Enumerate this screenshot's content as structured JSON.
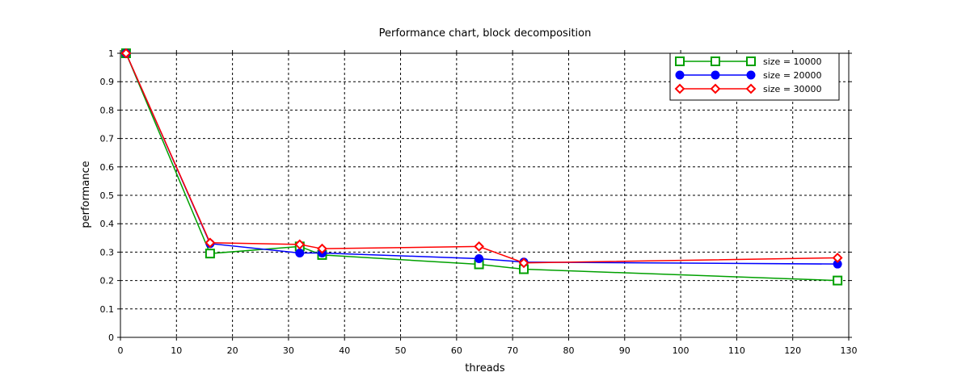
{
  "chart_data": {
    "type": "line",
    "title": "Performance chart, block decomposition",
    "xlabel": "threads",
    "ylabel": "performance",
    "xlim": [
      0,
      130
    ],
    "ylim": [
      0,
      1
    ],
    "xticks": [
      0,
      10,
      20,
      30,
      40,
      50,
      60,
      70,
      80,
      90,
      100,
      110,
      120,
      130
    ],
    "yticks": [
      0,
      0.1,
      0.2,
      0.3,
      0.4,
      0.5,
      0.6,
      0.7,
      0.8,
      0.9,
      1
    ],
    "xtick_labels": [
      "0",
      "10",
      "20",
      "30",
      "40",
      "50",
      "60",
      "70",
      "80",
      "90",
      "100",
      "110",
      "120",
      "130"
    ],
    "ytick_labels": [
      "0",
      "0.1",
      "0.2",
      "0.3",
      "0.4",
      "0.5",
      "0.6",
      "0.7",
      "0.8",
      "0.9",
      "1"
    ],
    "grid": true,
    "legend_position": "top-right",
    "series": [
      {
        "name": "size = 10000",
        "color": "#00a000",
        "marker": "square",
        "x": [
          1,
          16,
          32,
          36,
          64,
          72,
          128
        ],
        "y": [
          1.0,
          0.295,
          0.32,
          0.29,
          0.257,
          0.24,
          0.2
        ]
      },
      {
        "name": "size = 20000",
        "color": "#0000ff",
        "marker": "circle",
        "x": [
          1,
          16,
          32,
          36,
          64,
          72,
          128
        ],
        "y": [
          1.0,
          0.33,
          0.297,
          0.297,
          0.277,
          0.265,
          0.258
        ]
      },
      {
        "name": "size = 30000",
        "color": "#ff0000",
        "marker": "diamond",
        "x": [
          1,
          16,
          32,
          36,
          64,
          72,
          128
        ],
        "y": [
          1.0,
          0.333,
          0.327,
          0.312,
          0.32,
          0.262,
          0.28
        ]
      }
    ]
  }
}
